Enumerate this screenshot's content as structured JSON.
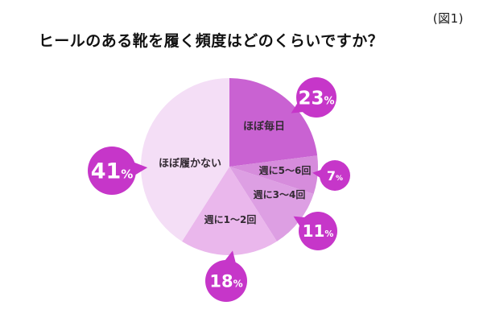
{
  "header": {
    "figure_label": "(図1)",
    "title": "ヒールのある靴を履く頻度はどのくらいですか？"
  },
  "chart_data": {
    "type": "pie",
    "title": "ヒールのある靴を履く頻度はどのくらいですか？",
    "figure_label": "(図1)",
    "unit": "%",
    "start_angle_deg": 0,
    "direction": "clockwise",
    "legend": "none",
    "segments": [
      {
        "label": "ほぼ毎日",
        "value": 23,
        "color": "#c962d2"
      },
      {
        "label": "週に5〜6回",
        "value": 7,
        "color": "#d68cdc"
      },
      {
        "label": "週に3〜4回",
        "value": 11,
        "color": "#dd9fe3"
      },
      {
        "label": "週に1〜2回",
        "value": 18,
        "color": "#eab7ec"
      },
      {
        "label": "ほぼ履かない",
        "value": 41,
        "color": "#f4def6"
      }
    ],
    "callout_color": "#c636c9",
    "callout_text_color": "#ffffff",
    "slice_label_color": "#332a33",
    "background_color": "#ffffff"
  }
}
